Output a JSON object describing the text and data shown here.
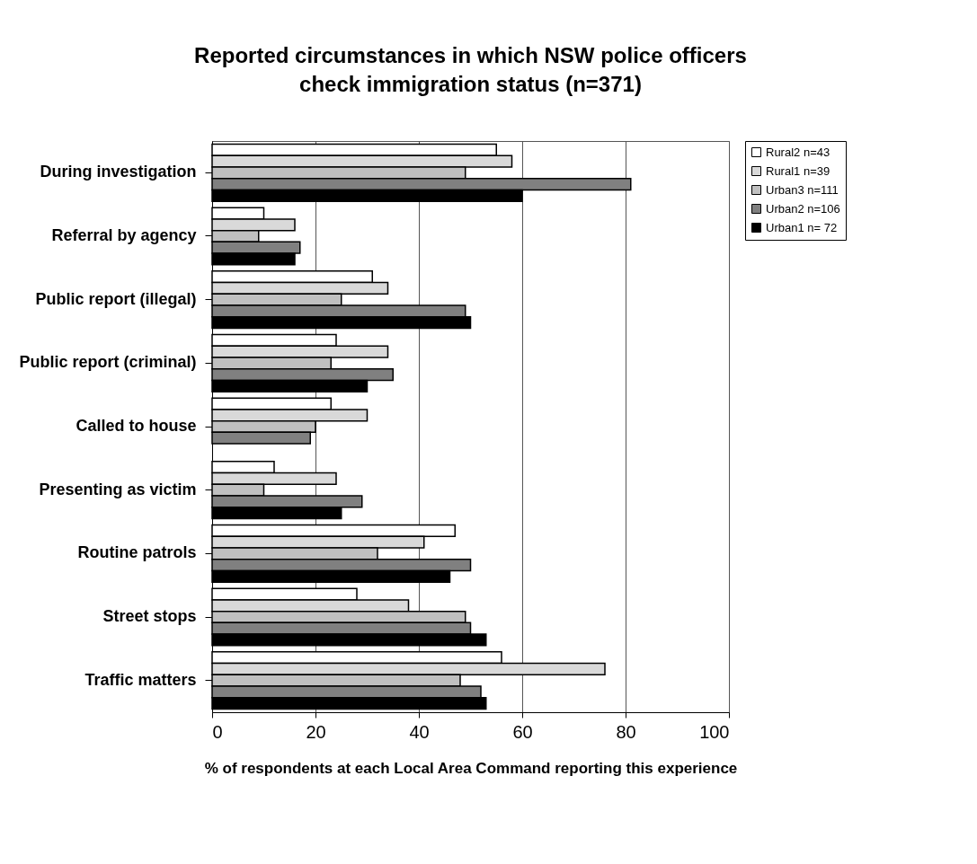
{
  "chart_data": {
    "type": "bar",
    "orientation": "horizontal",
    "title": [
      "Reported circumstances in which NSW police officers",
      "check immigration status (n=371)"
    ],
    "xlabel": "% of respondents at each Local Area Command reporting this experience",
    "categories": [
      "During investigation",
      "Referral by agency",
      "Public report (illegal)",
      "Public report (criminal)",
      "Called to house",
      "Presenting as victim",
      "Routine patrols",
      "Street stops",
      "Traffic matters"
    ],
    "series": [
      {
        "name": "Rural2 n=43",
        "color": "#ffffff",
        "values": [
          55,
          10,
          31,
          24,
          23,
          12,
          47,
          28,
          56
        ]
      },
      {
        "name": "Rural1 n=39",
        "color": "#d9d9d9",
        "values": [
          58,
          16,
          34,
          34,
          30,
          24,
          41,
          38,
          76
        ]
      },
      {
        "name": "Urban3 n=111",
        "color": "#c0c0c0",
        "values": [
          49,
          9,
          25,
          23,
          20,
          10,
          32,
          49,
          48
        ]
      },
      {
        "name": "Urban2 n=106",
        "color": "#808080",
        "values": [
          81,
          17,
          49,
          35,
          19,
          29,
          50,
          50,
          52
        ]
      },
      {
        "name": "Urban1 n= 72",
        "color": "#000000",
        "values": [
          60,
          16,
          50,
          30,
          null,
          25,
          46,
          53,
          53
        ]
      }
    ],
    "xlim": [
      0,
      100
    ],
    "xticks": [
      0,
      20,
      40,
      60,
      80,
      100
    ],
    "grid": "x",
    "legend": "right"
  }
}
